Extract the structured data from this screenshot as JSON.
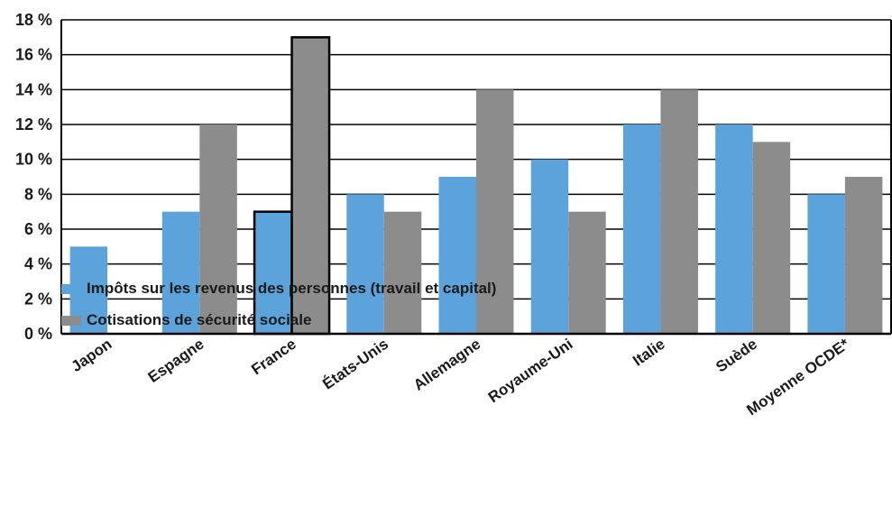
{
  "chart_data": {
    "type": "bar",
    "categories": [
      "Japon",
      "Espagne",
      "France",
      "États-Unis",
      "Allemagne",
      "Royaume-Uni",
      "Italie",
      "Suède",
      "Moyenne OCDE*"
    ],
    "highlight_category": "France",
    "highlight_color": "#5aa2d8",
    "series": [
      {
        "name": "Impôts sur les revenus des personnes (travail et capital)",
        "color": "#5ba3da",
        "values": [
          5,
          7,
          7,
          8,
          9,
          10,
          12,
          12,
          8
        ]
      },
      {
        "name": "Cotisations de sécurité sociale",
        "color": "#8c8c8c",
        "values": [
          0,
          12,
          17,
          7,
          14,
          7,
          14,
          11,
          9
        ]
      }
    ],
    "ylim": [
      0,
      18
    ],
    "yticks": [
      0,
      2,
      4,
      6,
      8,
      10,
      12,
      14,
      16,
      18
    ],
    "ytick_labels": [
      "0 %",
      "2 %",
      "4 %",
      "6 %",
      "8 %",
      "10 %",
      "12 %",
      "14 %",
      "16 %",
      "18 %"
    ],
    "grid": true,
    "legend_position": "bottom-left"
  }
}
